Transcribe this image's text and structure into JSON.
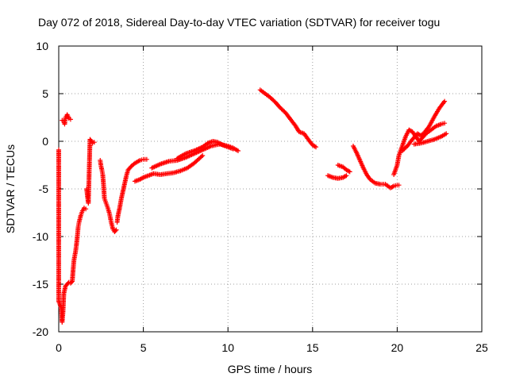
{
  "chart_data": {
    "type": "scatter",
    "title": "Day 072 of 2018, Sidereal Day-to-day VTEC variation (SDTVAR) for receiver togu",
    "xlabel": "GPS time / hours",
    "ylabel": "SDTVAR / TECUs",
    "xlim": [
      0,
      25
    ],
    "ylim": [
      -20,
      10
    ],
    "xticks": [
      0,
      5,
      10,
      15,
      20,
      25
    ],
    "yticks": [
      -20,
      -15,
      -10,
      -5,
      0,
      5,
      10
    ],
    "grid": true,
    "marker": "+",
    "color": "#ff0000",
    "series": [
      {
        "name": "SDTVAR",
        "segments": [
          [
            [
              0.0,
              -0.9
            ],
            [
              0.0,
              -16.8
            ],
            [
              0.15,
              -17.5
            ],
            [
              0.2,
              -19.0
            ],
            [
              0.25,
              -18.0
            ],
            [
              0.3,
              -16.0
            ],
            [
              0.4,
              -15.2
            ],
            [
              0.5,
              -15.0
            ],
            [
              0.6,
              -14.8
            ],
            [
              0.7,
              -14.9
            ],
            [
              0.8,
              -14.7
            ],
            [
              0.85,
              -13.5
            ],
            [
              0.9,
              -12.5
            ],
            [
              1.0,
              -11.5
            ],
            [
              1.05,
              -10.8
            ],
            [
              1.1,
              -10.0
            ],
            [
              1.15,
              -9.0
            ],
            [
              1.2,
              -8.5
            ],
            [
              1.3,
              -7.8
            ],
            [
              1.4,
              -7.3
            ],
            [
              1.5,
              -7.0
            ],
            [
              1.6,
              -7.1
            ]
          ],
          [
            [
              0.2,
              2.2
            ],
            [
              0.3,
              2.1
            ],
            [
              0.35,
              1.8
            ],
            [
              0.4,
              2.5
            ],
            [
              0.5,
              2.8
            ],
            [
              0.6,
              2.4
            ],
            [
              0.7,
              2.3
            ]
          ],
          [
            [
              1.65,
              -5.0
            ],
            [
              1.7,
              -5.8
            ],
            [
              1.75,
              -6.5
            ],
            [
              1.85,
              0.2
            ],
            [
              1.95,
              0.0
            ],
            [
              2.0,
              -0.2
            ],
            [
              2.1,
              -0.1
            ]
          ],
          [
            [
              2.45,
              -2.0
            ],
            [
              2.5,
              -2.6
            ],
            [
              2.55,
              -3.0
            ],
            [
              2.6,
              -3.5
            ],
            [
              2.65,
              -4.6
            ],
            [
              2.7,
              -6.0
            ],
            [
              2.8,
              -6.5
            ],
            [
              2.9,
              -7.0
            ],
            [
              3.0,
              -7.6
            ],
            [
              3.1,
              -8.5
            ],
            [
              3.2,
              -9.2
            ],
            [
              3.3,
              -9.5
            ],
            [
              3.4,
              -9.3
            ]
          ],
          [
            [
              3.45,
              -8.5
            ],
            [
              3.5,
              -7.8
            ],
            [
              3.6,
              -7.0
            ],
            [
              3.7,
              -6.0
            ],
            [
              3.8,
              -5.2
            ],
            [
              3.9,
              -4.4
            ],
            [
              4.0,
              -3.6
            ],
            [
              4.1,
              -3.0
            ],
            [
              4.3,
              -2.6
            ],
            [
              4.5,
              -2.3
            ],
            [
              4.8,
              -2.0
            ],
            [
              5.0,
              -1.9
            ],
            [
              5.2,
              -1.9
            ]
          ],
          [
            [
              4.5,
              -4.2
            ],
            [
              4.8,
              -4.0
            ],
            [
              5.0,
              -3.8
            ],
            [
              5.3,
              -3.6
            ],
            [
              5.6,
              -3.4
            ],
            [
              6.0,
              -3.5
            ],
            [
              6.4,
              -3.4
            ],
            [
              6.8,
              -3.3
            ],
            [
              7.2,
              -3.1
            ],
            [
              7.6,
              -2.8
            ],
            [
              8.0,
              -2.3
            ],
            [
              8.5,
              -1.5
            ]
          ],
          [
            [
              5.5,
              -2.8
            ],
            [
              6.0,
              -2.4
            ],
            [
              6.5,
              -2.1
            ],
            [
              7.0,
              -2.0
            ],
            [
              7.5,
              -1.7
            ],
            [
              8.0,
              -1.3
            ],
            [
              8.5,
              -0.9
            ],
            [
              9.0,
              -0.5
            ],
            [
              9.5,
              -0.3
            ],
            [
              10.0,
              -0.5
            ],
            [
              10.3,
              -0.7
            ],
            [
              10.6,
              -1.0
            ]
          ],
          [
            [
              7.0,
              -1.8
            ],
            [
              7.5,
              -1.3
            ],
            [
              8.0,
              -1.0
            ],
            [
              8.5,
              -0.6
            ],
            [
              8.8,
              -0.2
            ],
            [
              9.1,
              0.0
            ],
            [
              9.4,
              -0.1
            ],
            [
              9.7,
              -0.4
            ],
            [
              10.0,
              -0.6
            ],
            [
              10.3,
              -0.8
            ]
          ],
          [
            [
              11.9,
              5.4
            ],
            [
              12.2,
              5.0
            ],
            [
              12.5,
              4.6
            ],
            [
              12.8,
              4.1
            ],
            [
              13.1,
              3.5
            ],
            [
              13.4,
              3.0
            ],
            [
              13.7,
              2.3
            ],
            [
              14.0,
              1.6
            ],
            [
              14.2,
              1.0
            ],
            [
              14.5,
              0.8
            ],
            [
              14.7,
              0.3
            ],
            [
              15.0,
              -0.4
            ],
            [
              15.2,
              -0.6
            ]
          ],
          [
            [
              15.9,
              -3.6
            ],
            [
              16.2,
              -3.8
            ],
            [
              16.5,
              -3.9
            ],
            [
              16.8,
              -3.8
            ],
            [
              17.0,
              -3.6
            ]
          ],
          [
            [
              16.5,
              -2.5
            ],
            [
              16.8,
              -2.7
            ],
            [
              17.0,
              -3.0
            ],
            [
              17.2,
              -3.2
            ]
          ],
          [
            [
              17.4,
              -0.5
            ],
            [
              17.6,
              -1.2
            ],
            [
              17.8,
              -2.0
            ],
            [
              18.0,
              -2.8
            ],
            [
              18.2,
              -3.5
            ],
            [
              18.4,
              -4.0
            ],
            [
              18.7,
              -4.4
            ],
            [
              19.0,
              -4.5
            ],
            [
              19.3,
              -4.5
            ],
            [
              19.6,
              -4.9
            ],
            [
              19.8,
              -4.7
            ],
            [
              20.0,
              -4.6
            ],
            [
              20.1,
              -4.6
            ]
          ],
          [
            [
              19.8,
              -3.5
            ],
            [
              20.0,
              -2.5
            ],
            [
              20.1,
              -1.5
            ],
            [
              20.3,
              -0.5
            ],
            [
              20.5,
              0.5
            ],
            [
              20.7,
              1.2
            ],
            [
              20.9,
              1.0
            ],
            [
              21.1,
              0.5
            ],
            [
              21.3,
              0.0
            ],
            [
              21.5,
              0.4
            ],
            [
              21.7,
              0.8
            ],
            [
              22.0,
              1.2
            ],
            [
              22.3,
              1.6
            ],
            [
              22.6,
              1.8
            ],
            [
              22.8,
              1.9
            ]
          ],
          [
            [
              20.3,
              -1.0
            ],
            [
              20.6,
              -0.5
            ],
            [
              20.9,
              0.2
            ],
            [
              21.2,
              0.8
            ],
            [
              21.4,
              0.6
            ],
            [
              21.6,
              0.9
            ],
            [
              21.9,
              1.6
            ],
            [
              22.2,
              2.6
            ],
            [
              22.5,
              3.5
            ],
            [
              22.8,
              4.2
            ]
          ],
          [
            [
              21.0,
              -0.3
            ],
            [
              21.4,
              -0.2
            ],
            [
              21.8,
              0.0
            ],
            [
              22.2,
              0.2
            ],
            [
              22.6,
              0.5
            ],
            [
              22.9,
              0.8
            ]
          ]
        ]
      }
    ]
  }
}
